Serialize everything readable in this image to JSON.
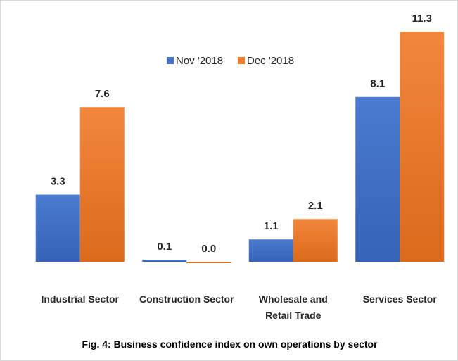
{
  "chart_data": {
    "type": "bar",
    "title": "Fig. 4: Business confidence index on own operations by sector",
    "categories": [
      "Industrial Sector",
      "Construction Sector",
      "Wholesale and Retail Trade",
      "Services Sector"
    ],
    "series": [
      {
        "name": "Nov '2018",
        "color": "#4472c4",
        "values": [
          3.3,
          0.1,
          1.1,
          8.1
        ],
        "value_labels": [
          "3.3",
          "0.1",
          "1.1",
          "8.1"
        ]
      },
      {
        "name": "Dec '2018",
        "color": "#ed7d31",
        "values": [
          7.6,
          0,
          2.1,
          11.3
        ],
        "value_labels": [
          "7.6",
          "0.0",
          "2.1",
          "11.3"
        ]
      }
    ],
    "ylim": [
      0,
      12
    ],
    "legend": "top"
  }
}
